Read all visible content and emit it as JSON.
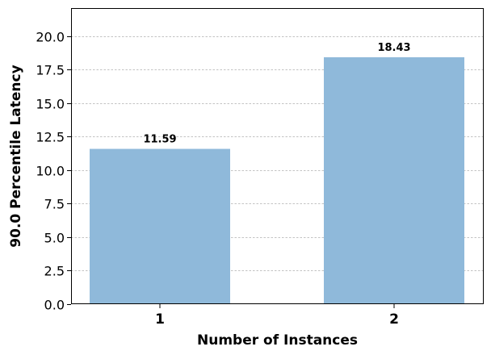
{
  "chart_data": {
    "type": "bar",
    "categories": [
      "1",
      "2"
    ],
    "values": [
      11.59,
      18.43
    ],
    "data_labels": [
      "11.59",
      "18.43"
    ],
    "xlabel": "Number of Instances",
    "ylabel": "90.0 Percentile Latency",
    "ylim": [
      0,
      22.1
    ],
    "yticks": [
      0.0,
      2.5,
      5.0,
      7.5,
      10.0,
      12.5,
      15.0,
      17.5,
      20.0
    ],
    "ytick_labels": [
      "0.0",
      "2.5",
      "5.0",
      "7.5",
      "10.0",
      "12.5",
      "15.0",
      "17.5",
      "20.0"
    ],
    "grid": "horizontal dashed",
    "bar_color": "#8fb9da",
    "grid_color": "#b0b0b0"
  }
}
